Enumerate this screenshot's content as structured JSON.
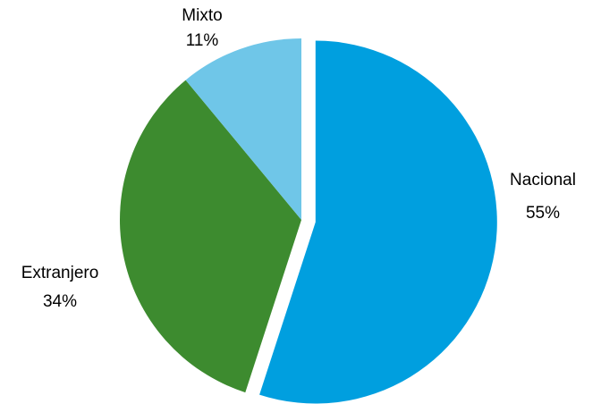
{
  "chart_data": {
    "type": "pie",
    "slices": [
      {
        "label": "Nacional",
        "value": 55,
        "display": "55%",
        "color": "#009FDF",
        "exploded": true
      },
      {
        "label": "Extranjero",
        "value": 34,
        "display": "34%",
        "color": "#3D8B2F",
        "exploded": false
      },
      {
        "label": "Mixto",
        "value": 11,
        "display": "11%",
        "color": "#6FC6E8",
        "exploded": false
      }
    ],
    "start_angle_deg": 0,
    "direction": "clockwise",
    "legend": "none",
    "data_labels": "outside"
  }
}
